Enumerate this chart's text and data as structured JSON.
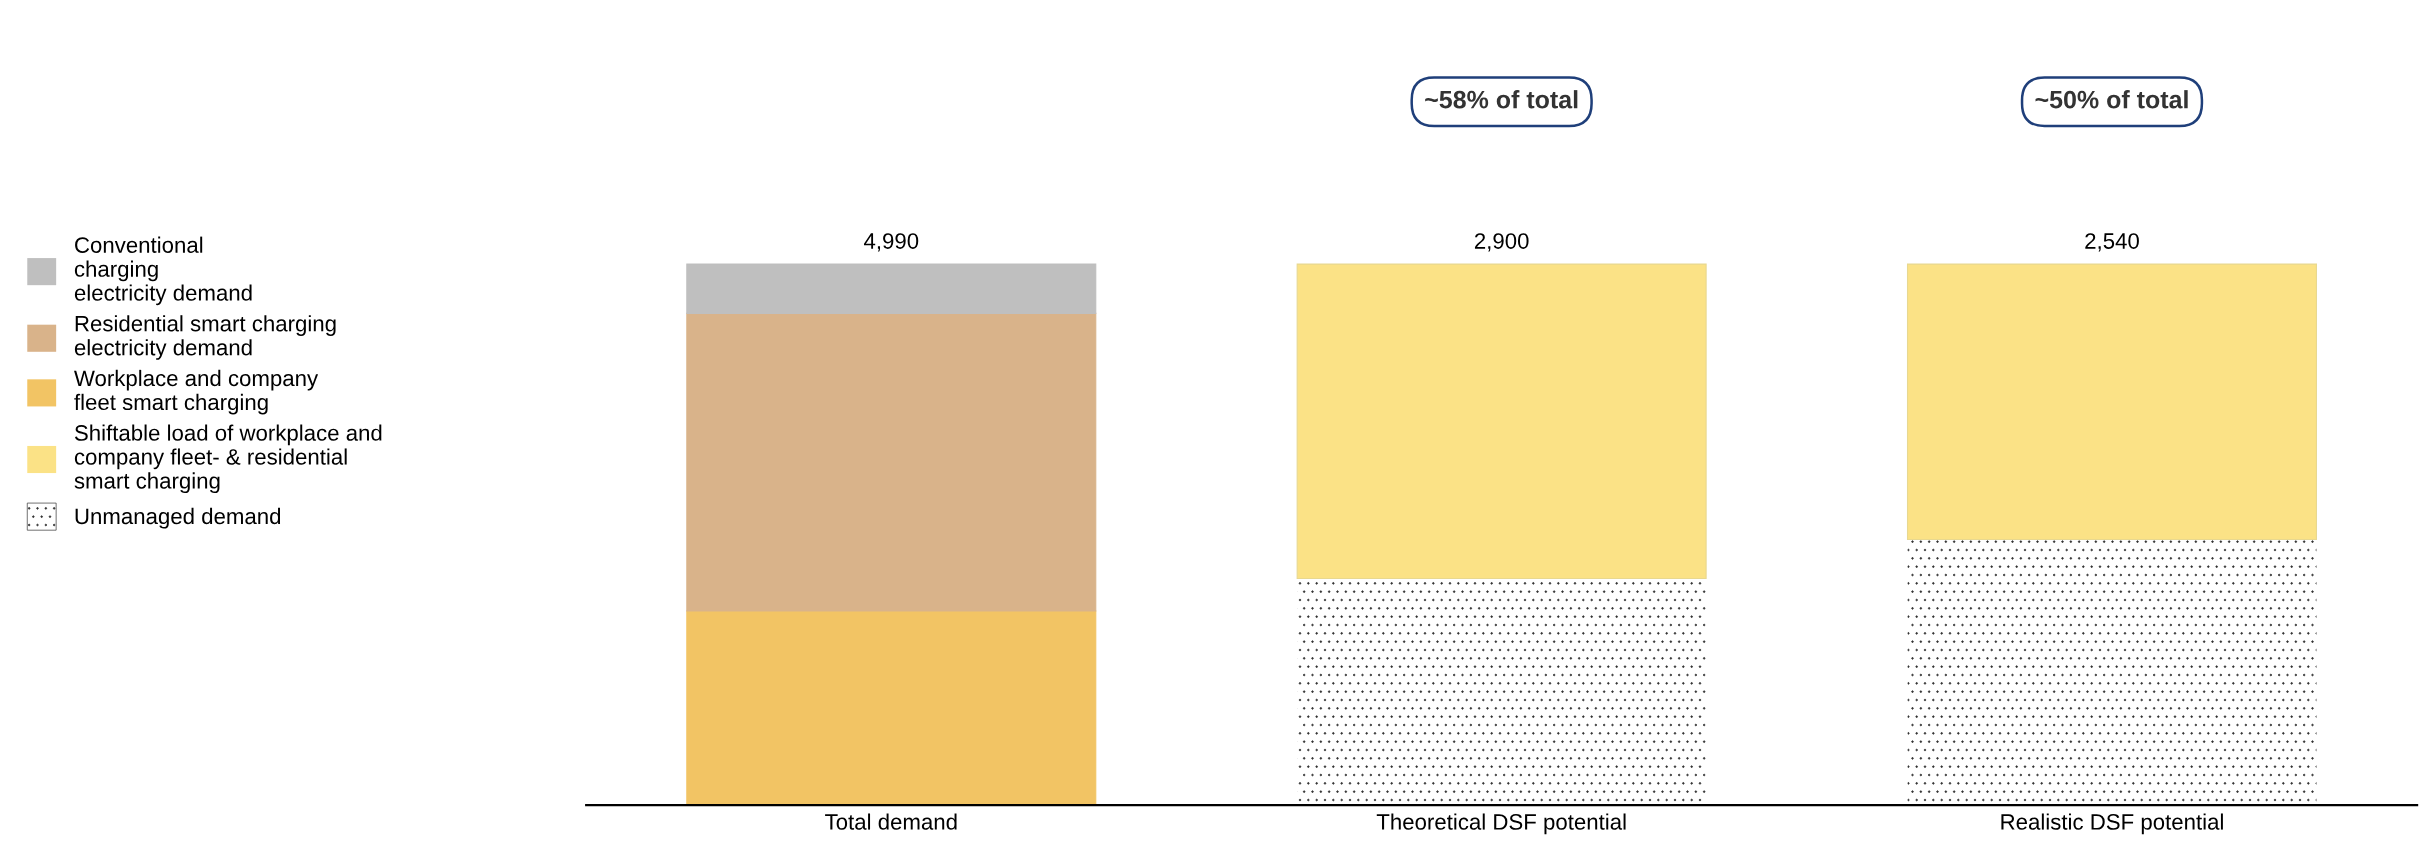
{
  "chart_data": {
    "type": "bar",
    "stacked": true,
    "legend": "left",
    "categories": [
      "Total demand",
      "Theoretical DSF potential",
      "Realistic DSF potential"
    ],
    "series": [
      {
        "name": "Unmanaged demand",
        "color": "#ffffff",
        "values": [
          null,
          2090,
          2450
        ]
      },
      {
        "name": "Workplace and company\nfleet smart charging",
        "color": "#f2c464",
        "values": [
          1790,
          null,
          null
        ]
      },
      {
        "name": "Residential smart charging\nelectricity demand",
        "color": "#d9b38a",
        "values": [
          2745,
          null,
          null
        ]
      },
      {
        "name": "Conventional\ncharging\nelectricity demand",
        "color": "#bfbfbf",
        "values": [
          455,
          null,
          null
        ]
      },
      {
        "name": "Shiftable load of workplace and\ncompany fleet- & residential\nsmart charging",
        "color": "#fbe286",
        "values": [
          null,
          2900,
          2540
        ],
        "value_labels": [
          null,
          "2,900",
          "2,540"
        ]
      }
    ],
    "totals": [
      "4,990",
      null,
      null
    ],
    "annotations": [
      "~58% of total",
      "~50% of total"
    ]
  }
}
